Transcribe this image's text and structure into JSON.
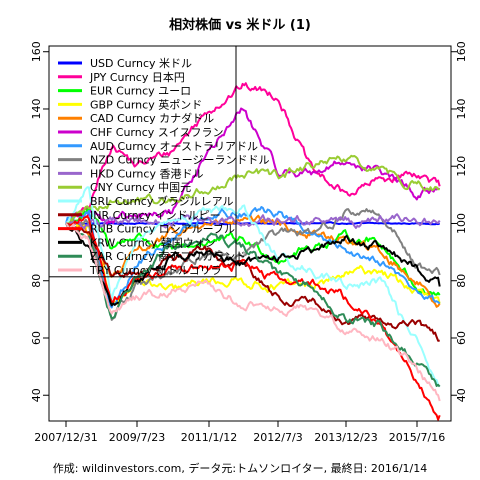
{
  "chart_data": {
    "type": "line",
    "title": "相対株価 vs 米ドル (1)",
    "caption": "作成: wildinvestors.com, データ元:トムソンロイター, 最終日: 2016/1/14",
    "x_ticks": [
      "2007/12/31",
      "2009/7/23",
      "2011/1/12",
      "2012/7/3",
      "2013/12/23",
      "2015/7/16"
    ],
    "y_ticks": [
      40,
      60,
      80,
      100,
      120,
      140,
      160
    ],
    "ylim": [
      31,
      162
    ],
    "grid": false,
    "legend_position": "top-left",
    "x_anchor_dates": [
      "2007/12/31",
      "2008/6/30",
      "2008/12/31",
      "2009/7/23",
      "2010/3/31",
      "2011/1/12",
      "2011/10/1",
      "2012/7/3",
      "2013/3/29",
      "2013/12/23",
      "2014/9/19",
      "2015/7/16",
      "2016/1/14"
    ],
    "series": [
      {
        "name": "USD Curncy 米ドル",
        "color": "#0000ff",
        "values": [
          100,
          100,
          100,
          100,
          100,
          100,
          100,
          100,
          100,
          100,
          100,
          100,
          100
        ]
      },
      {
        "name": "JPY Curncy 日本円",
        "color": "#ff0099",
        "values": [
          100,
          105,
          128,
          120,
          125,
          140,
          148,
          145,
          118,
          110,
          115,
          118,
          113
        ]
      },
      {
        "name": "EUR Curncy ユーロ",
        "color": "#00ff00",
        "values": [
          100,
          104,
          92,
          96,
          90,
          94,
          94,
          88,
          92,
          95,
          94,
          78,
          75
        ]
      },
      {
        "name": "GBP Curncy 英ポンド",
        "color": "#ffff00",
        "values": [
          100,
          98,
          72,
          80,
          76,
          80,
          80,
          78,
          78,
          82,
          84,
          76,
          72
        ]
      },
      {
        "name": "CAD Curncy カナダドル",
        "color": "#ff8000",
        "values": [
          100,
          98,
          80,
          90,
          96,
          100,
          100,
          100,
          96,
          94,
          90,
          80,
          72
        ]
      },
      {
        "name": "CHF Curncy スイスフラン",
        "color": "#cc00cc",
        "values": [
          100,
          106,
          100,
          102,
          104,
          125,
          140,
          118,
          118,
          122,
          118,
          110,
          112
        ]
      },
      {
        "name": "AUD Curncy オーストラリアドル",
        "color": "#3399ff",
        "values": [
          100,
          104,
          70,
          86,
          94,
          104,
          104,
          104,
          96,
          90,
          88,
          76,
          72
        ]
      },
      {
        "name": "NZD Curncy ニュージーランドドル",
        "color": "#808080",
        "values": [
          100,
          100,
          68,
          78,
          82,
          90,
          90,
          96,
          96,
          104,
          104,
          86,
          82
        ]
      },
      {
        "name": "HKD Curncy 香港ドル",
        "color": "#9966cc",
        "values": [
          100,
          100,
          101,
          101,
          101,
          100,
          100,
          101,
          101,
          101,
          101,
          101,
          101
        ]
      },
      {
        "name": "CNY Curncy 中国元",
        "color": "#99cc33",
        "values": [
          100,
          106,
          108,
          108,
          108,
          112,
          118,
          116,
          120,
          122,
          118,
          114,
          112
        ]
      },
      {
        "name": "BRL Curncy ブラジルレアル",
        "color": "#99ffff",
        "values": [
          100,
          112,
          74,
          94,
          100,
          104,
          106,
          88,
          84,
          78,
          80,
          58,
          43
        ]
      },
      {
        "name": "INR Curncy インドルピー",
        "color": "#990000",
        "values": [
          100,
          96,
          82,
          82,
          88,
          90,
          86,
          74,
          72,
          66,
          66,
          64,
          59
        ]
      },
      {
        "name": "RUB Curncy ロシアルーブル",
        "color": "#ff0000",
        "values": [
          100,
          102,
          74,
          80,
          84,
          84,
          86,
          80,
          80,
          74,
          64,
          46,
          33
        ]
      },
      {
        "name": "KRW Curncy 韓国ウォン",
        "color": "#000000",
        "values": [
          100,
          92,
          70,
          80,
          88,
          90,
          86,
          88,
          90,
          94,
          92,
          84,
          78
        ]
      },
      {
        "name": "ZAR Curncy 南アフリカランド",
        "color": "#2e8b57",
        "values": [
          100,
          94,
          66,
          82,
          92,
          96,
          92,
          82,
          78,
          66,
          64,
          52,
          43
        ]
      },
      {
        "name": "TRY Curncy 新トルコリラ",
        "color": "#ffb6c1",
        "values": [
          100,
          94,
          68,
          74,
          76,
          78,
          72,
          70,
          70,
          62,
          60,
          50,
          38
        ]
      }
    ]
  }
}
